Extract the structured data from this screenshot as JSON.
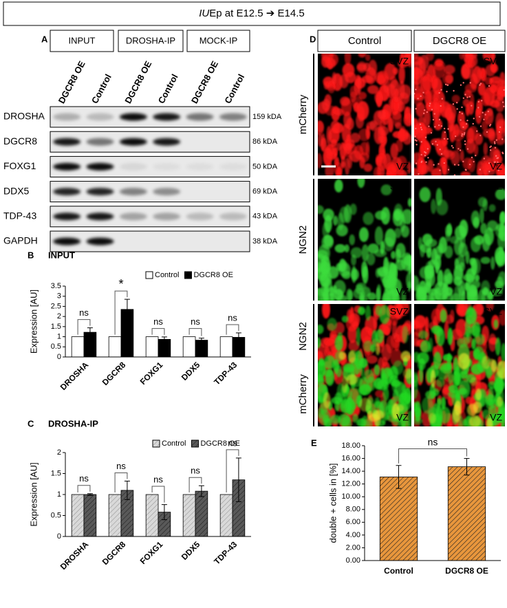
{
  "header": {
    "title_italic": "IU",
    "title_rest": "Ep at E12.5 ➔ E14.5"
  },
  "panel_a": {
    "label": "A",
    "groups": [
      "INPUT",
      "DROSHA-IP",
      "MOCK-IP"
    ],
    "lanes": [
      "DGCR8 OE",
      "Control",
      "DGCR8 OE",
      "Control",
      "DGCR8 OE",
      "Control"
    ],
    "rows": [
      {
        "protein": "DROSHA",
        "size": "159 kDA"
      },
      {
        "protein": "DGCR8",
        "size": "86 kDA"
      },
      {
        "protein": "FOXG1",
        "size": "50 kDA"
      },
      {
        "protein": "DDX5",
        "size": "69 kDA"
      },
      {
        "protein": "TDP-43",
        "size": "43 kDA"
      },
      {
        "protein": "GAPDH",
        "size": "38 kDA"
      }
    ]
  },
  "panel_d": {
    "label": "D",
    "columns": [
      "Control",
      "DGCR8 OE"
    ],
    "rows": [
      {
        "labels": [
          "mCherry"
        ]
      },
      {
        "labels": [
          "NGN2"
        ]
      },
      {
        "labels": [
          "NGN2",
          "mCherry"
        ]
      }
    ],
    "top_label": "SVZ",
    "bottom_label": "VZ"
  },
  "chart_data": [
    {
      "type": "bar",
      "panel_label": "B",
      "title": "INPUT",
      "y_label": "Expression [AU]",
      "categories": [
        "DROSHA",
        "DGCR8",
        "FOXG1",
        "DDX5",
        "TDP-43"
      ],
      "series": [
        {
          "name": "Control",
          "color": "#ffffff",
          "values": [
            1,
            1,
            1,
            1,
            1
          ]
        },
        {
          "name": "DGCR8 OE",
          "color": "#000000",
          "values": [
            1.22,
            2.35,
            0.87,
            0.83,
            0.97
          ],
          "errors": [
            0.22,
            0.5,
            0.12,
            0.1,
            0.22
          ]
        }
      ],
      "ylim": [
        0,
        3.5
      ],
      "yticks": [
        0,
        0.5,
        1,
        1.5,
        2,
        2.5,
        3,
        3.5
      ],
      "significance": [
        "ns",
        "*",
        "ns",
        "ns",
        "ns"
      ],
      "hatch": false
    },
    {
      "type": "bar",
      "panel_label": "C",
      "title": "DROSHA-IP",
      "y_label": "Expression [AU]",
      "categories": [
        "DROSHA",
        "DGCR8",
        "FOXG1",
        "DDX5",
        "TDP-43"
      ],
      "series": [
        {
          "name": "Control",
          "color": "#d9d9d9",
          "values": [
            1,
            1,
            1,
            1,
            1
          ]
        },
        {
          "name": "DGCR8 OE",
          "color": "#595959",
          "values": [
            1,
            1.1,
            0.58,
            1.08,
            1.35
          ],
          "errors": [
            0.02,
            0.22,
            0.18,
            0.13,
            0.52
          ]
        }
      ],
      "ylim": [
        0,
        2
      ],
      "yticks": [
        0,
        0.5,
        1,
        1.5,
        2
      ],
      "significance": [
        "ns",
        "ns",
        "ns",
        "ns",
        "ns"
      ],
      "hatch": true
    },
    {
      "type": "bar",
      "panel_label": "E",
      "y_label": "double + cells in [%]",
      "categories": [
        "Control",
        "DGCR8 OE"
      ],
      "series": [
        {
          "color": "#e8963c",
          "values": [
            13.1,
            14.7
          ],
          "errors": [
            1.8,
            1.3
          ]
        }
      ],
      "ylim": [
        0,
        18
      ],
      "yticks": [
        {
          "value": 0,
          "label": "0.00"
        },
        {
          "value": 2,
          "label": "2.00"
        },
        {
          "value": 4,
          "label": "4.00"
        },
        {
          "value": 6,
          "label": "6.00"
        },
        {
          "value": 8,
          "label": "8.00"
        },
        {
          "value": 10,
          "label": "10.00"
        },
        {
          "value": 12,
          "label": "12.00"
        },
        {
          "value": 14,
          "label": "14.00"
        },
        {
          "value": 16,
          "label": "16.00"
        },
        {
          "value": 18,
          "label": "18.00"
        }
      ],
      "bracket_label": "ns",
      "hatch": true
    }
  ]
}
